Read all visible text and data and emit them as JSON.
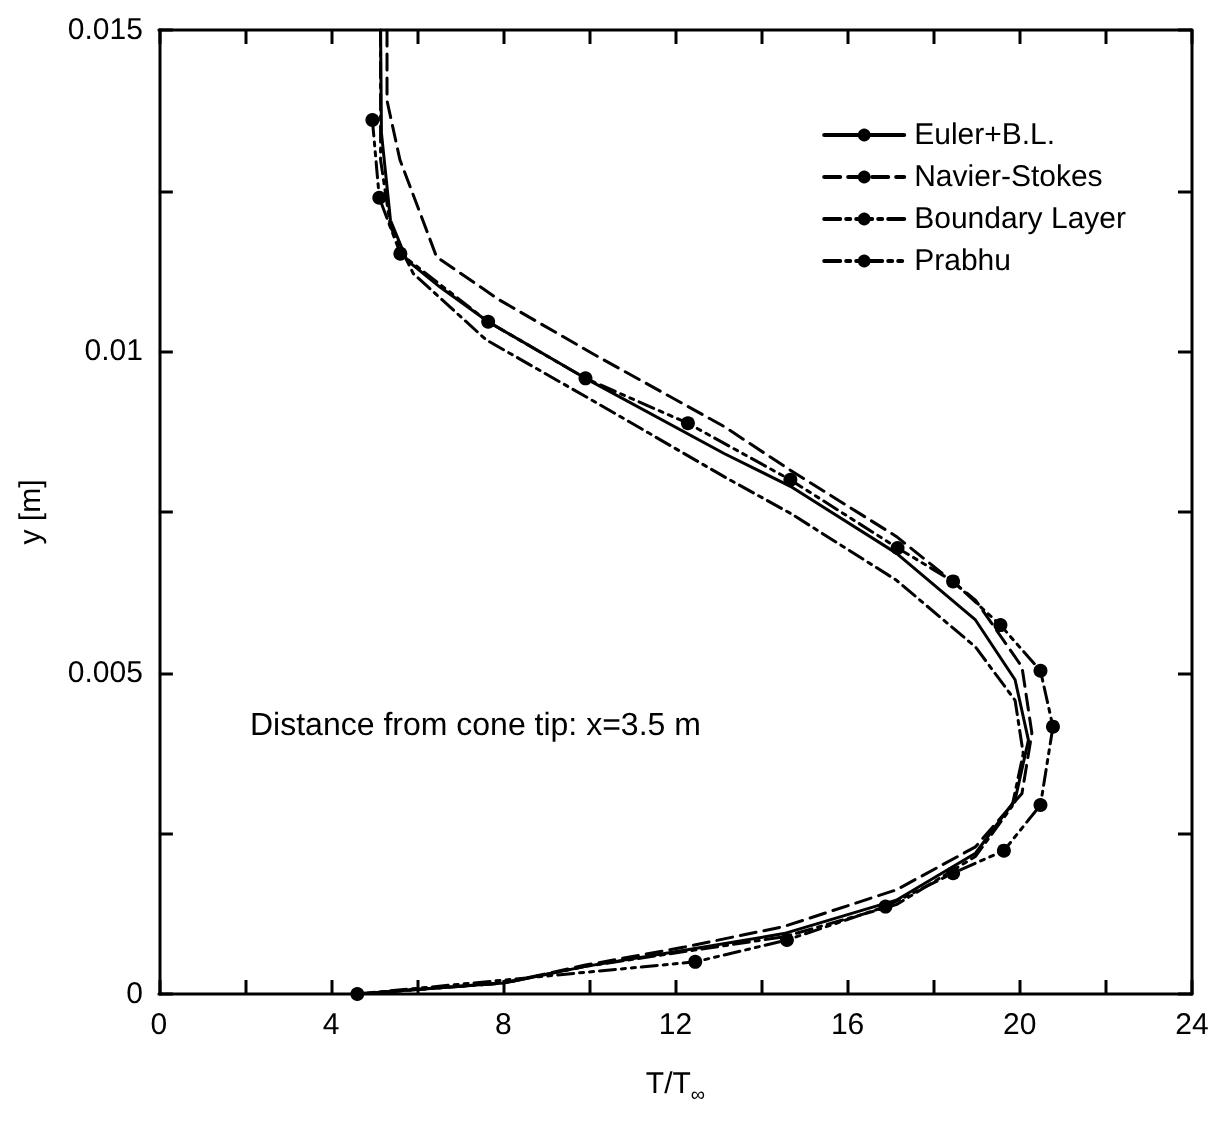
{
  "chart_data": {
    "type": "line",
    "xlabel": "T/T$_{∞}$",
    "ylabel": "y [m]",
    "annotations": [
      "Distance from cone tip: x=3.5 m"
    ],
    "xlim": [
      0,
      24
    ],
    "xticks": [
      0,
      {
        "value": 2,
        "label": null
      },
      4,
      {
        "value": 6,
        "label": null
      },
      8,
      {
        "value": 10,
        "label": null
      },
      12,
      {
        "value": 14,
        "label": null
      },
      16,
      {
        "value": 18,
        "label": null
      },
      20,
      {
        "value": 22,
        "label": null
      },
      24
    ],
    "ylim": [
      0,
      0.015
    ],
    "yticks": [
      0,
      {
        "value": 0.0025,
        "label": null
      },
      0.005,
      {
        "value": 0.0075,
        "label": null
      },
      0.01,
      {
        "value": 0.0125,
        "label": null
      },
      0.015
    ],
    "grid": false,
    "legend": "top right",
    "series": [
      {
        "name": "Euler+B.L.",
        "color": "#000000",
        "line_style": "solid",
        "marker": "none",
        "x": [
          5.15,
          5.17,
          5.38,
          5.76,
          6.53,
          7.65,
          9.91,
          13.13,
          14.67,
          17.13,
          18.97,
          19.89,
          20.2,
          19.89,
          18.97,
          17.13,
          14.52,
          12.21,
          9.91,
          8,
          4.61
        ],
        "values": [
          0.015,
          0.0134,
          0.01204,
          0.01142,
          0.011,
          0.01046,
          0.00958,
          0.00841,
          0.0079,
          0.00686,
          0.00582,
          0.00489,
          0.00395,
          0.00302,
          0.00219,
          0.00146,
          0.00094,
          0.00068,
          0.00043,
          0.00017,
          0
        ]
      },
      {
        "name": "Navier-Stokes",
        "color": "#000000",
        "line_style": "dashed",
        "marker": "none",
        "x": [
          5.3,
          5.3,
          5.6,
          6.07,
          6.45,
          7.91,
          10.06,
          13.13,
          14.67,
          17.13,
          18.97,
          20.05,
          20.28,
          20.05,
          18.97,
          17.13,
          14.52,
          12.21,
          9.91,
          8,
          4.61
        ],
        "values": [
          0.015,
          0.0139,
          0.01298,
          0.01215,
          0.01147,
          0.0108,
          0.00997,
          0.00883,
          0.00815,
          0.00712,
          0.00613,
          0.00509,
          0.00406,
          0.00312,
          0.00229,
          0.00162,
          0.00105,
          0.00073,
          0.00045,
          0.00017,
          0
        ]
      },
      {
        "name": "Boundary Layer",
        "color": "#000000",
        "line_style": "dashdot",
        "marker": "none",
        "x": [
          5.15,
          5.15,
          5.38,
          5.91,
          7.6,
          10.06,
          13.13,
          14.67,
          17.13,
          18.97,
          19.89,
          20.08,
          19.82,
          18.97,
          17.13,
          14.52,
          12.21,
          9.91,
          8,
          4.61
        ],
        "values": [
          0.015,
          0.01298,
          0.01194,
          0.01121,
          0.01018,
          0.00924,
          0.00805,
          0.00748,
          0.00644,
          0.0054,
          0.00457,
          0.00374,
          0.00292,
          0.00214,
          0.00139,
          0.00089,
          0.00066,
          0.00043,
          0.00017,
          0
        ]
      },
      {
        "name": "Prabhu",
        "color": "#000000",
        "line_style": "dashdotdot",
        "marker": "circle",
        "x": [
          4.96,
          5.12,
          5.61,
          7.65,
          9.91,
          12.29,
          14.67,
          17.16,
          18.45,
          19.55,
          20.48,
          20.77,
          20.48,
          19.63,
          18.45,
          16.88,
          14.59,
          12.46,
          4.61
        ],
        "values": [
          0.0136,
          0.01239,
          0.01152,
          0.01046,
          0.00958,
          0.00888,
          0.008,
          0.00694,
          0.00642,
          0.00574,
          0.00503,
          0.00416,
          0.00294,
          0.00223,
          0.00188,
          0.00136,
          0.00084,
          0.0005,
          0
        ]
      }
    ]
  }
}
